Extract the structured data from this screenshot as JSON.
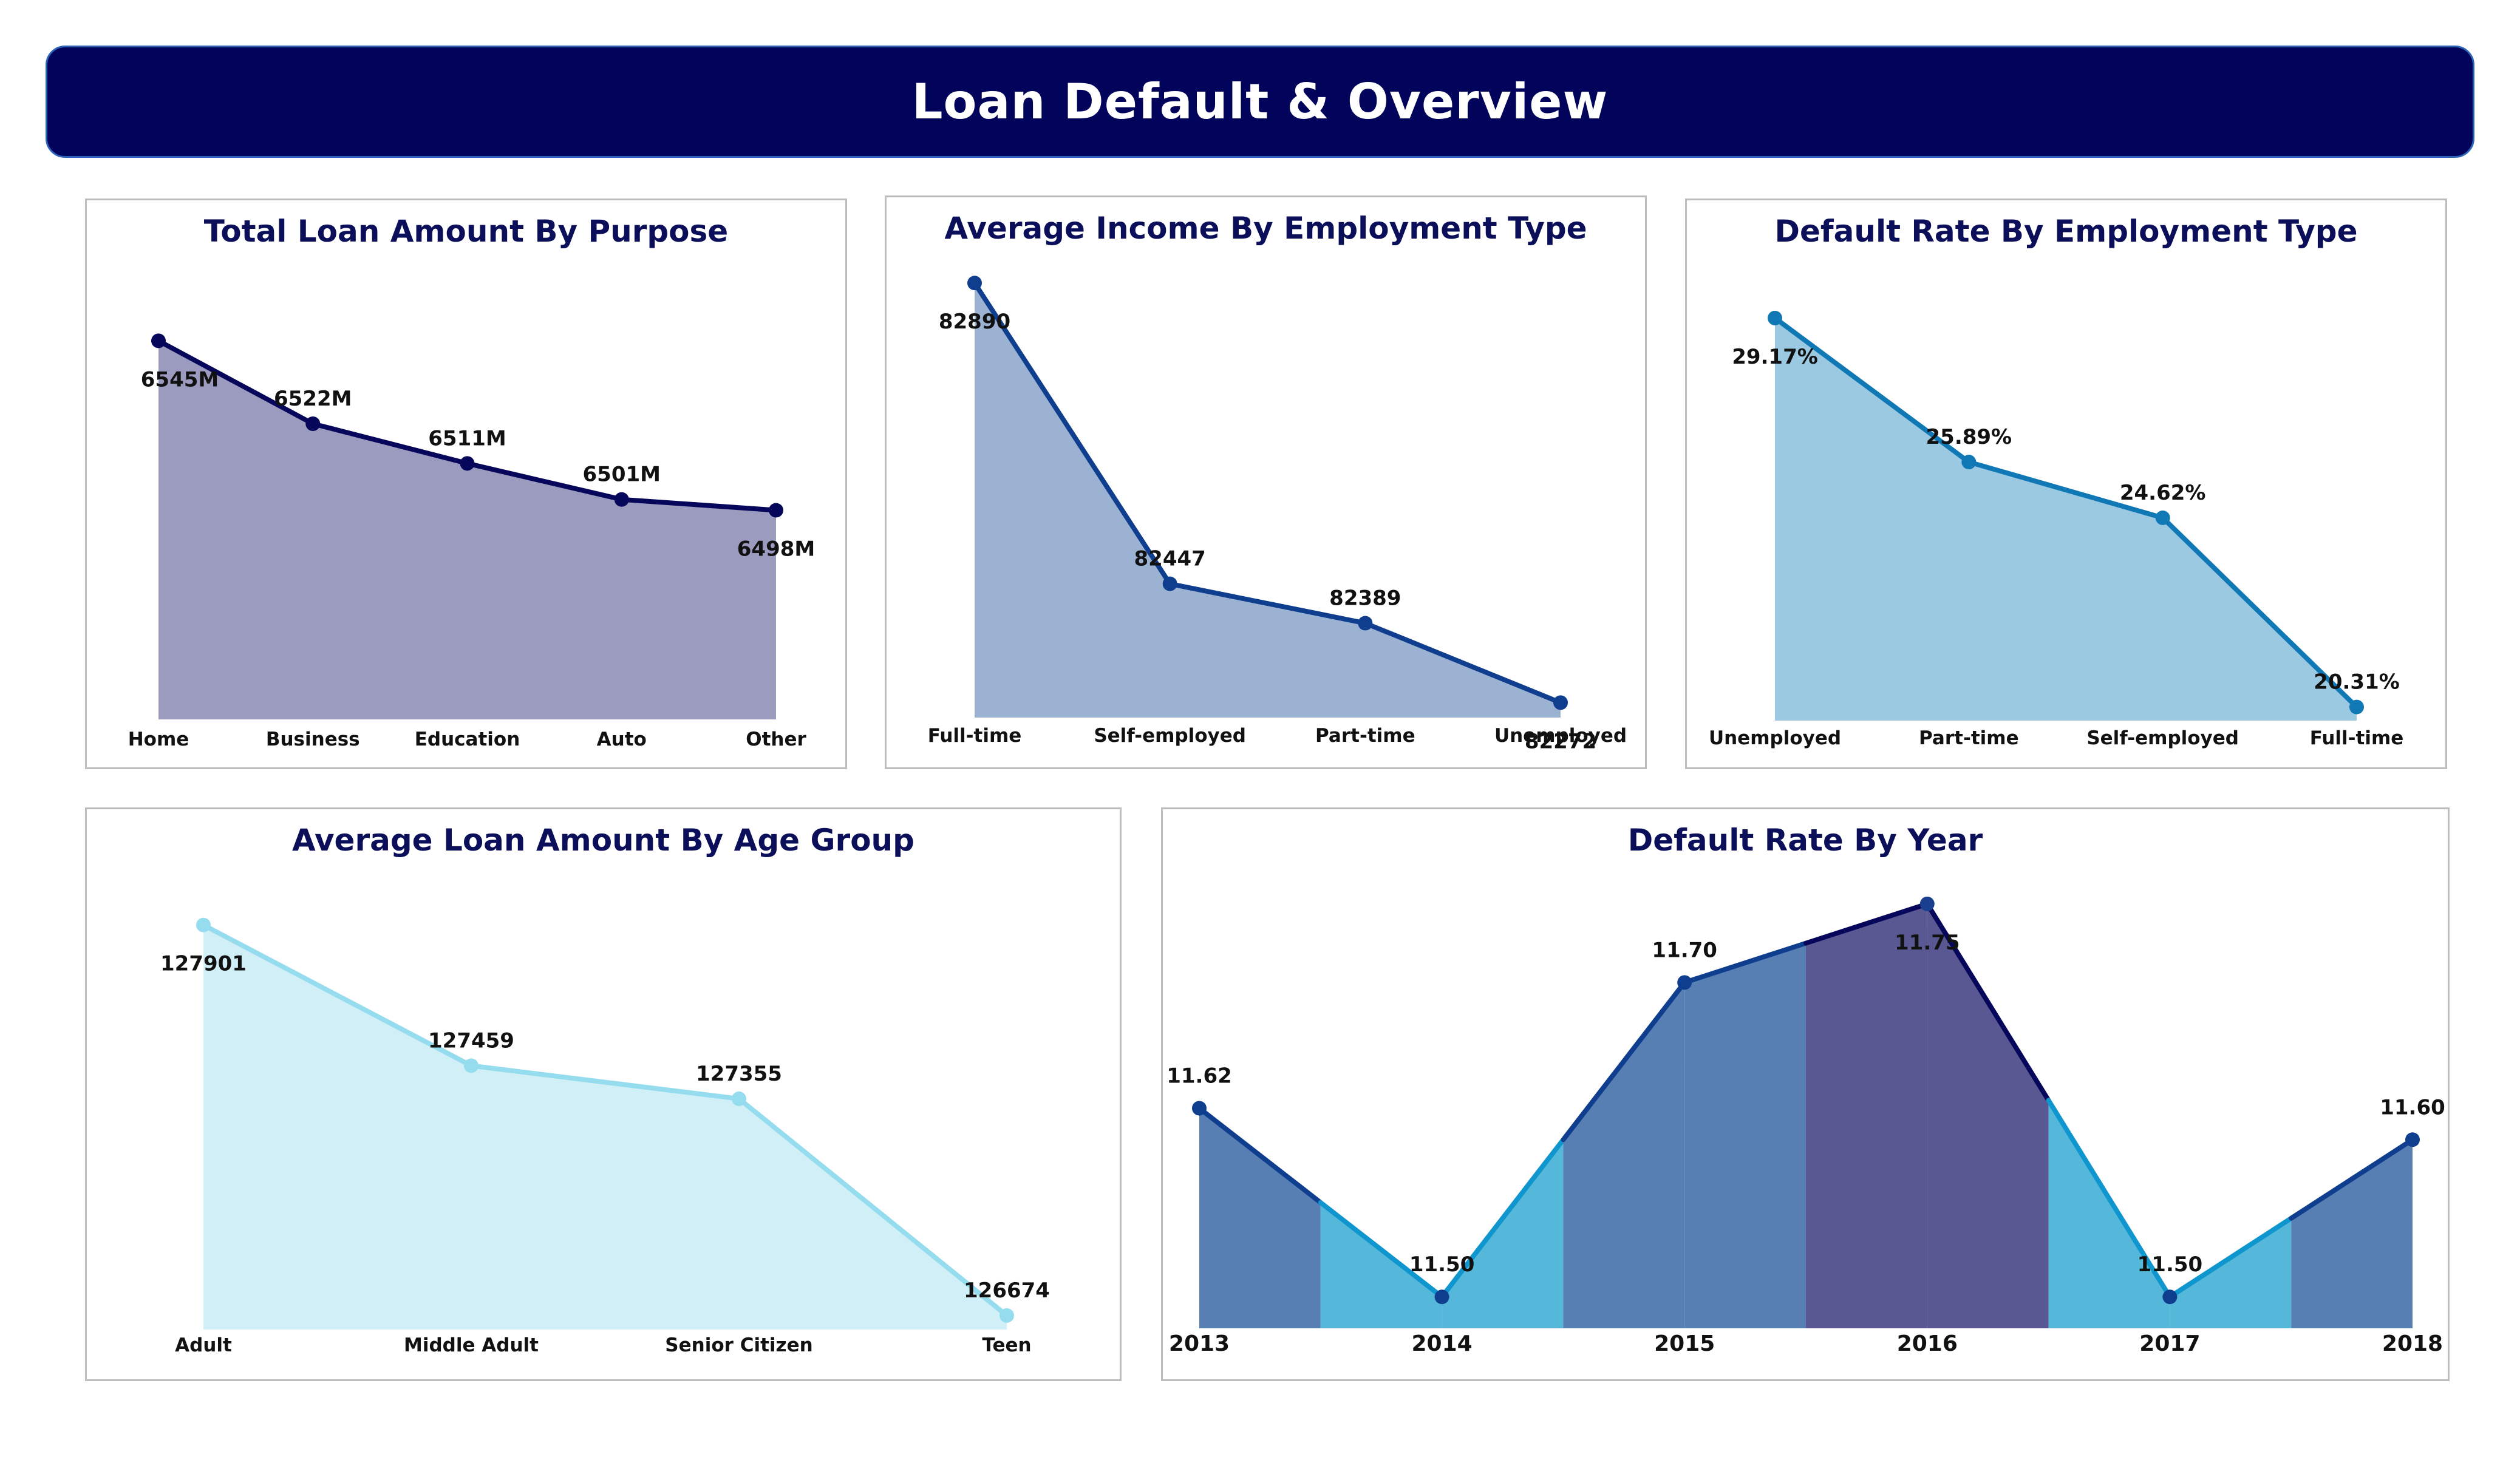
{
  "dashboard": {
    "title": "Loan Default & Overview"
  },
  "chart_data": [
    {
      "id": "purpose",
      "type": "area",
      "title": "Total Loan Amount By Purpose",
      "categories": [
        "Home",
        "Business",
        "Education",
        "Auto",
        "Other"
      ],
      "values": [
        6545,
        6522,
        6511,
        6501,
        6498
      ],
      "labels": [
        "6545M",
        "6522M",
        "6511M",
        "6501M",
        "6498M"
      ],
      "ylim": [
        6440,
        6555
      ],
      "line_color": "#06075a",
      "fill_color": "#9b9bc0"
    },
    {
      "id": "income",
      "type": "area",
      "title": "Average Income By Employment Type",
      "categories": [
        "Full-time",
        "Self-employed",
        "Part-time",
        "Unemployed"
      ],
      "values": [
        82890,
        82447,
        82389,
        82272
      ],
      "labels": [
        "82890",
        "82447",
        "82389",
        "82272"
      ],
      "ylim": [
        82250,
        82900
      ],
      "line_color": "#0f3e8f",
      "fill_color": "#9bb2d2"
    },
    {
      "id": "default_emp",
      "type": "area",
      "title": "Default Rate By Employment Type",
      "categories": [
        "Unemployed",
        "Part-time",
        "Self-employed",
        "Full-time"
      ],
      "values": [
        29.17,
        25.89,
        24.62,
        20.31
      ],
      "labels": [
        "29.17%",
        "25.89%",
        "24.62%",
        "20.31%"
      ],
      "ylim": [
        20.0,
        29.5
      ],
      "line_color": "#0f78b5",
      "fill_color": "#9bc9e1"
    },
    {
      "id": "age",
      "type": "area",
      "title": "Average Loan Amount By Age Group",
      "categories": [
        "Adult",
        "Middle Adult",
        "Senior Citizen",
        "Teen"
      ],
      "values": [
        127901,
        127459,
        127355,
        126674
      ],
      "labels": [
        "127901",
        "127459",
        "127355",
        "126674"
      ],
      "ylim": [
        126630,
        127950
      ],
      "line_color": "#95dcef",
      "fill_color": "#d1eff6"
    },
    {
      "id": "year",
      "type": "area",
      "title": "Default Rate By Year",
      "categories": [
        "2013",
        "2014",
        "2015",
        "2016",
        "2017",
        "2018"
      ],
      "values": [
        11.62,
        11.5,
        11.7,
        11.75,
        11.5,
        11.6
      ],
      "labels": [
        "11.62",
        "11.50",
        "11.70",
        "11.75",
        "11.50",
        "11.60"
      ],
      "ylim": [
        11.48,
        11.76
      ],
      "line_color_up": "#0f3e8f",
      "line_color_down": "#1096cf",
      "line_color_peak": "#06075a",
      "fill_color_up": "#577fb3",
      "fill_color_down": "#55b8da",
      "fill_color_peak": "#5a5893",
      "point_color": "#0f3e8f"
    }
  ]
}
